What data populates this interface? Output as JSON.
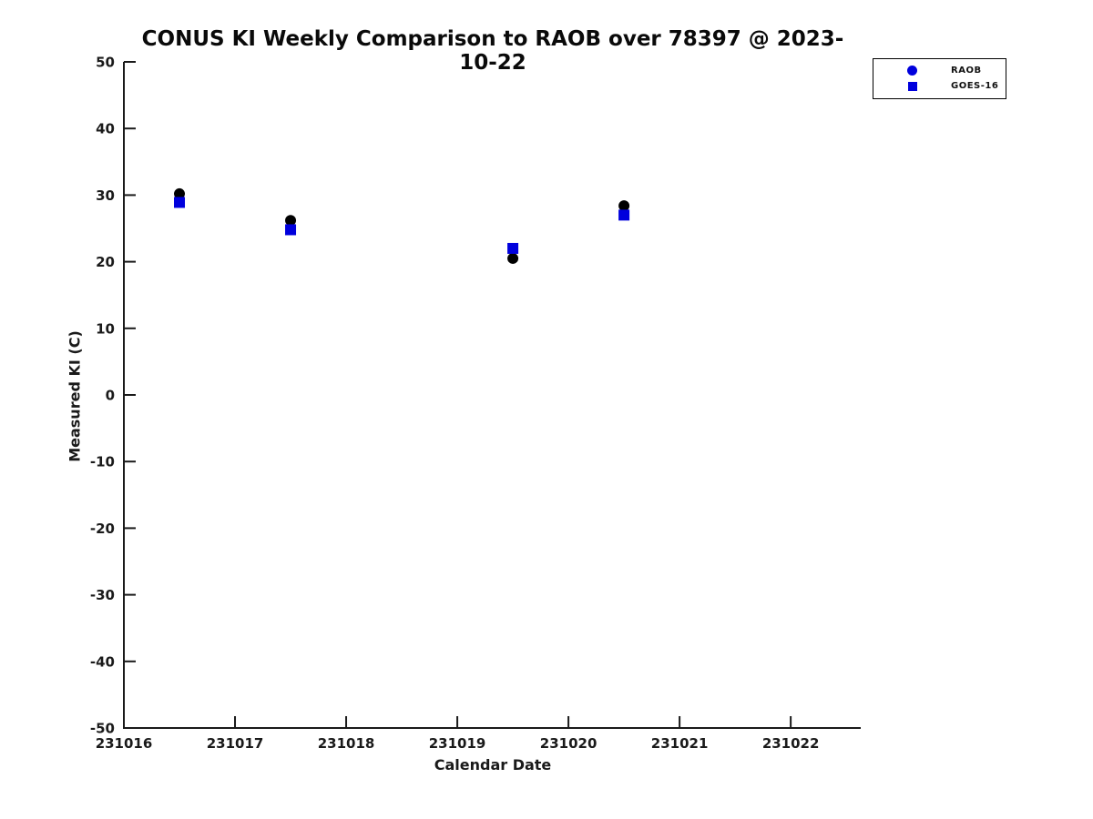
{
  "chart_data": {
    "type": "scatter",
    "title": "CONUS KI Weekly Comparison to RAOB over 78397 @ 2023-10-22",
    "xlabel": "Calendar Date",
    "ylabel": "Measured KI (C)",
    "xlim": [
      231016,
      231022.63
    ],
    "ylim": [
      -50,
      50
    ],
    "grid": false,
    "legend_position": "upper right",
    "x_ticks": {
      "values": [
        231016,
        231017,
        231018,
        231019,
        231020,
        231021,
        231022
      ],
      "labels": [
        "231016",
        "231017",
        "231018",
        "231019",
        "231020",
        "231021",
        "231022"
      ]
    },
    "y_ticks": {
      "values": [
        -50,
        -40,
        -30,
        -20,
        -10,
        0,
        10,
        20,
        30,
        40,
        50
      ],
      "labels": [
        "-50",
        "-40",
        "-30",
        "-20",
        "-10",
        "0",
        "10",
        "20",
        "30",
        "40",
        "50"
      ]
    },
    "series": [
      {
        "name": "RAOB",
        "marker": "circle",
        "color": "#000000",
        "legend_color": "#0000dd",
        "x": [
          231016.5,
          231017.5,
          231019.5,
          231020.5
        ],
        "y": [
          30.2,
          26.2,
          20.5,
          28.4
        ]
      },
      {
        "name": "GOES-16",
        "marker": "square",
        "color": "#0000dd",
        "legend_color": "#0000dd",
        "x": [
          231016.5,
          231017.5,
          231019.5,
          231020.5
        ],
        "y": [
          28.9,
          24.8,
          22.0,
          27.0
        ]
      }
    ],
    "axis_color": "#1a1a1a",
    "tick_label_color": "#1a1a1a"
  }
}
